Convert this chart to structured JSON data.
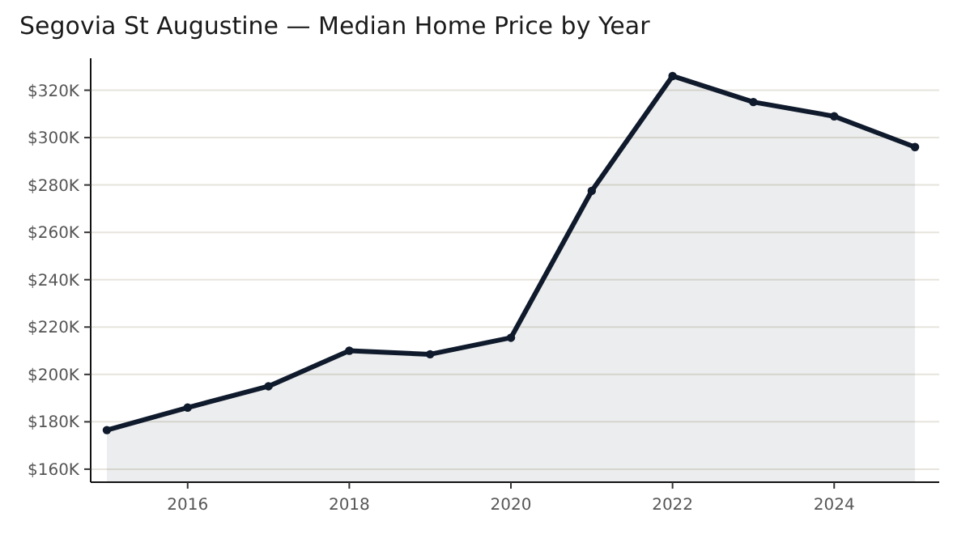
{
  "chart_data": {
    "type": "area",
    "title": "Segovia St Augustine — Median Home Price by Year",
    "x": [
      2015,
      2016,
      2017,
      2018,
      2019,
      2020,
      2021,
      2022,
      2023,
      2024,
      2025
    ],
    "series": [
      {
        "color": "#0f1a2c",
        "values": [
          176500,
          186000,
          195000,
          210000,
          208500,
          215500,
          277500,
          326000,
          315000,
          309000,
          296000
        ]
      }
    ],
    "xlim": [
      2014.8,
      2025.3
    ],
    "xticks": [
      2016,
      2018,
      2020,
      2022,
      2024
    ],
    "ylim": [
      154500,
      333500
    ],
    "yticks": [
      {
        "value": 160000,
        "label": "$160K"
      },
      {
        "value": 180000,
        "label": "$180K"
      },
      {
        "value": 200000,
        "label": "$200K"
      },
      {
        "value": 220000,
        "label": "$220K"
      },
      {
        "value": 240000,
        "label": "$240K"
      },
      {
        "value": 260000,
        "label": "$260K"
      },
      {
        "value": 280000,
        "label": "$280K"
      },
      {
        "value": 300000,
        "label": "$300K"
      },
      {
        "value": 320000,
        "label": "$320K"
      }
    ],
    "grid": "y",
    "marker": "circle",
    "line_style": "solid"
  }
}
